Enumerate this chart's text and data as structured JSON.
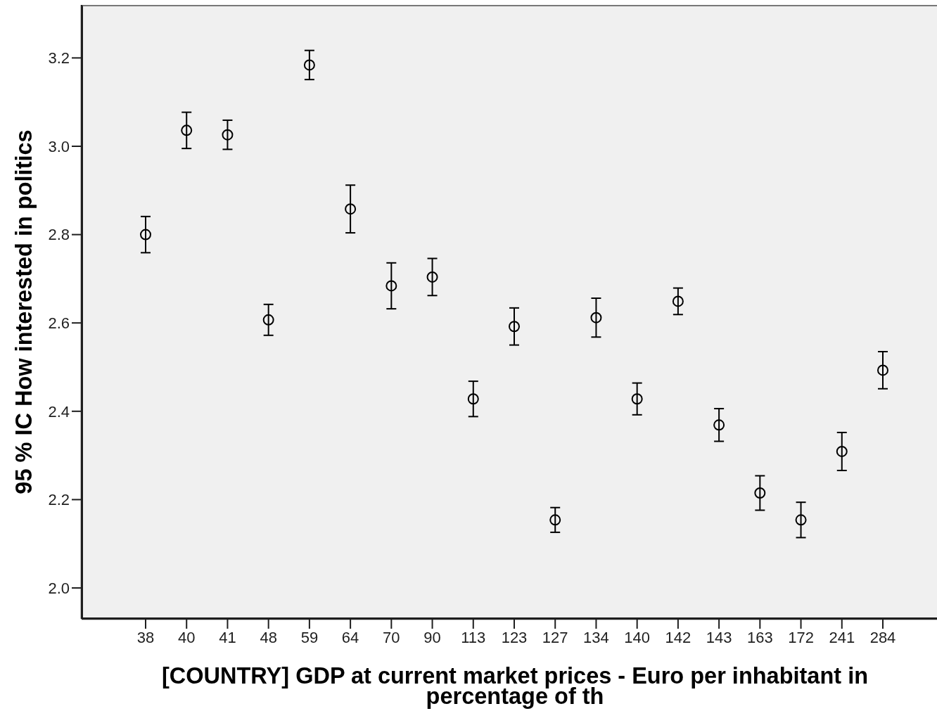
{
  "chart_data": {
    "type": "scatter",
    "xlabel": "[COUNTRY] GDP at current market prices - Euro per inhabitant in percentage of th",
    "ylabel": "95 % IC How interested in politics",
    "categories": [
      "38",
      "40",
      "41",
      "48",
      "59",
      "64",
      "70",
      "90",
      "113",
      "123",
      "127",
      "134",
      "140",
      "142",
      "143",
      "163",
      "172",
      "241",
      "284"
    ],
    "values": [
      2.8,
      3.036,
      3.026,
      2.607,
      3.184,
      2.858,
      2.684,
      2.704,
      2.428,
      2.592,
      2.154,
      2.612,
      2.428,
      2.649,
      2.369,
      2.215,
      2.154,
      2.309,
      2.493
    ],
    "errors": [
      0.041,
      0.041,
      0.033,
      0.035,
      0.033,
      0.054,
      0.052,
      0.042,
      0.04,
      0.042,
      0.028,
      0.044,
      0.036,
      0.03,
      0.037,
      0.039,
      0.04,
      0.043,
      0.042
    ],
    "color": "#000000",
    "marker": "circle",
    "ylim": [
      1.93,
      3.32
    ],
    "yticks": [
      {
        "value": 2,
        "label": "2.0"
      },
      2.2,
      2.4,
      2.6,
      2.8,
      {
        "value": 3,
        "label": "3.0"
      },
      3.2
    ]
  }
}
